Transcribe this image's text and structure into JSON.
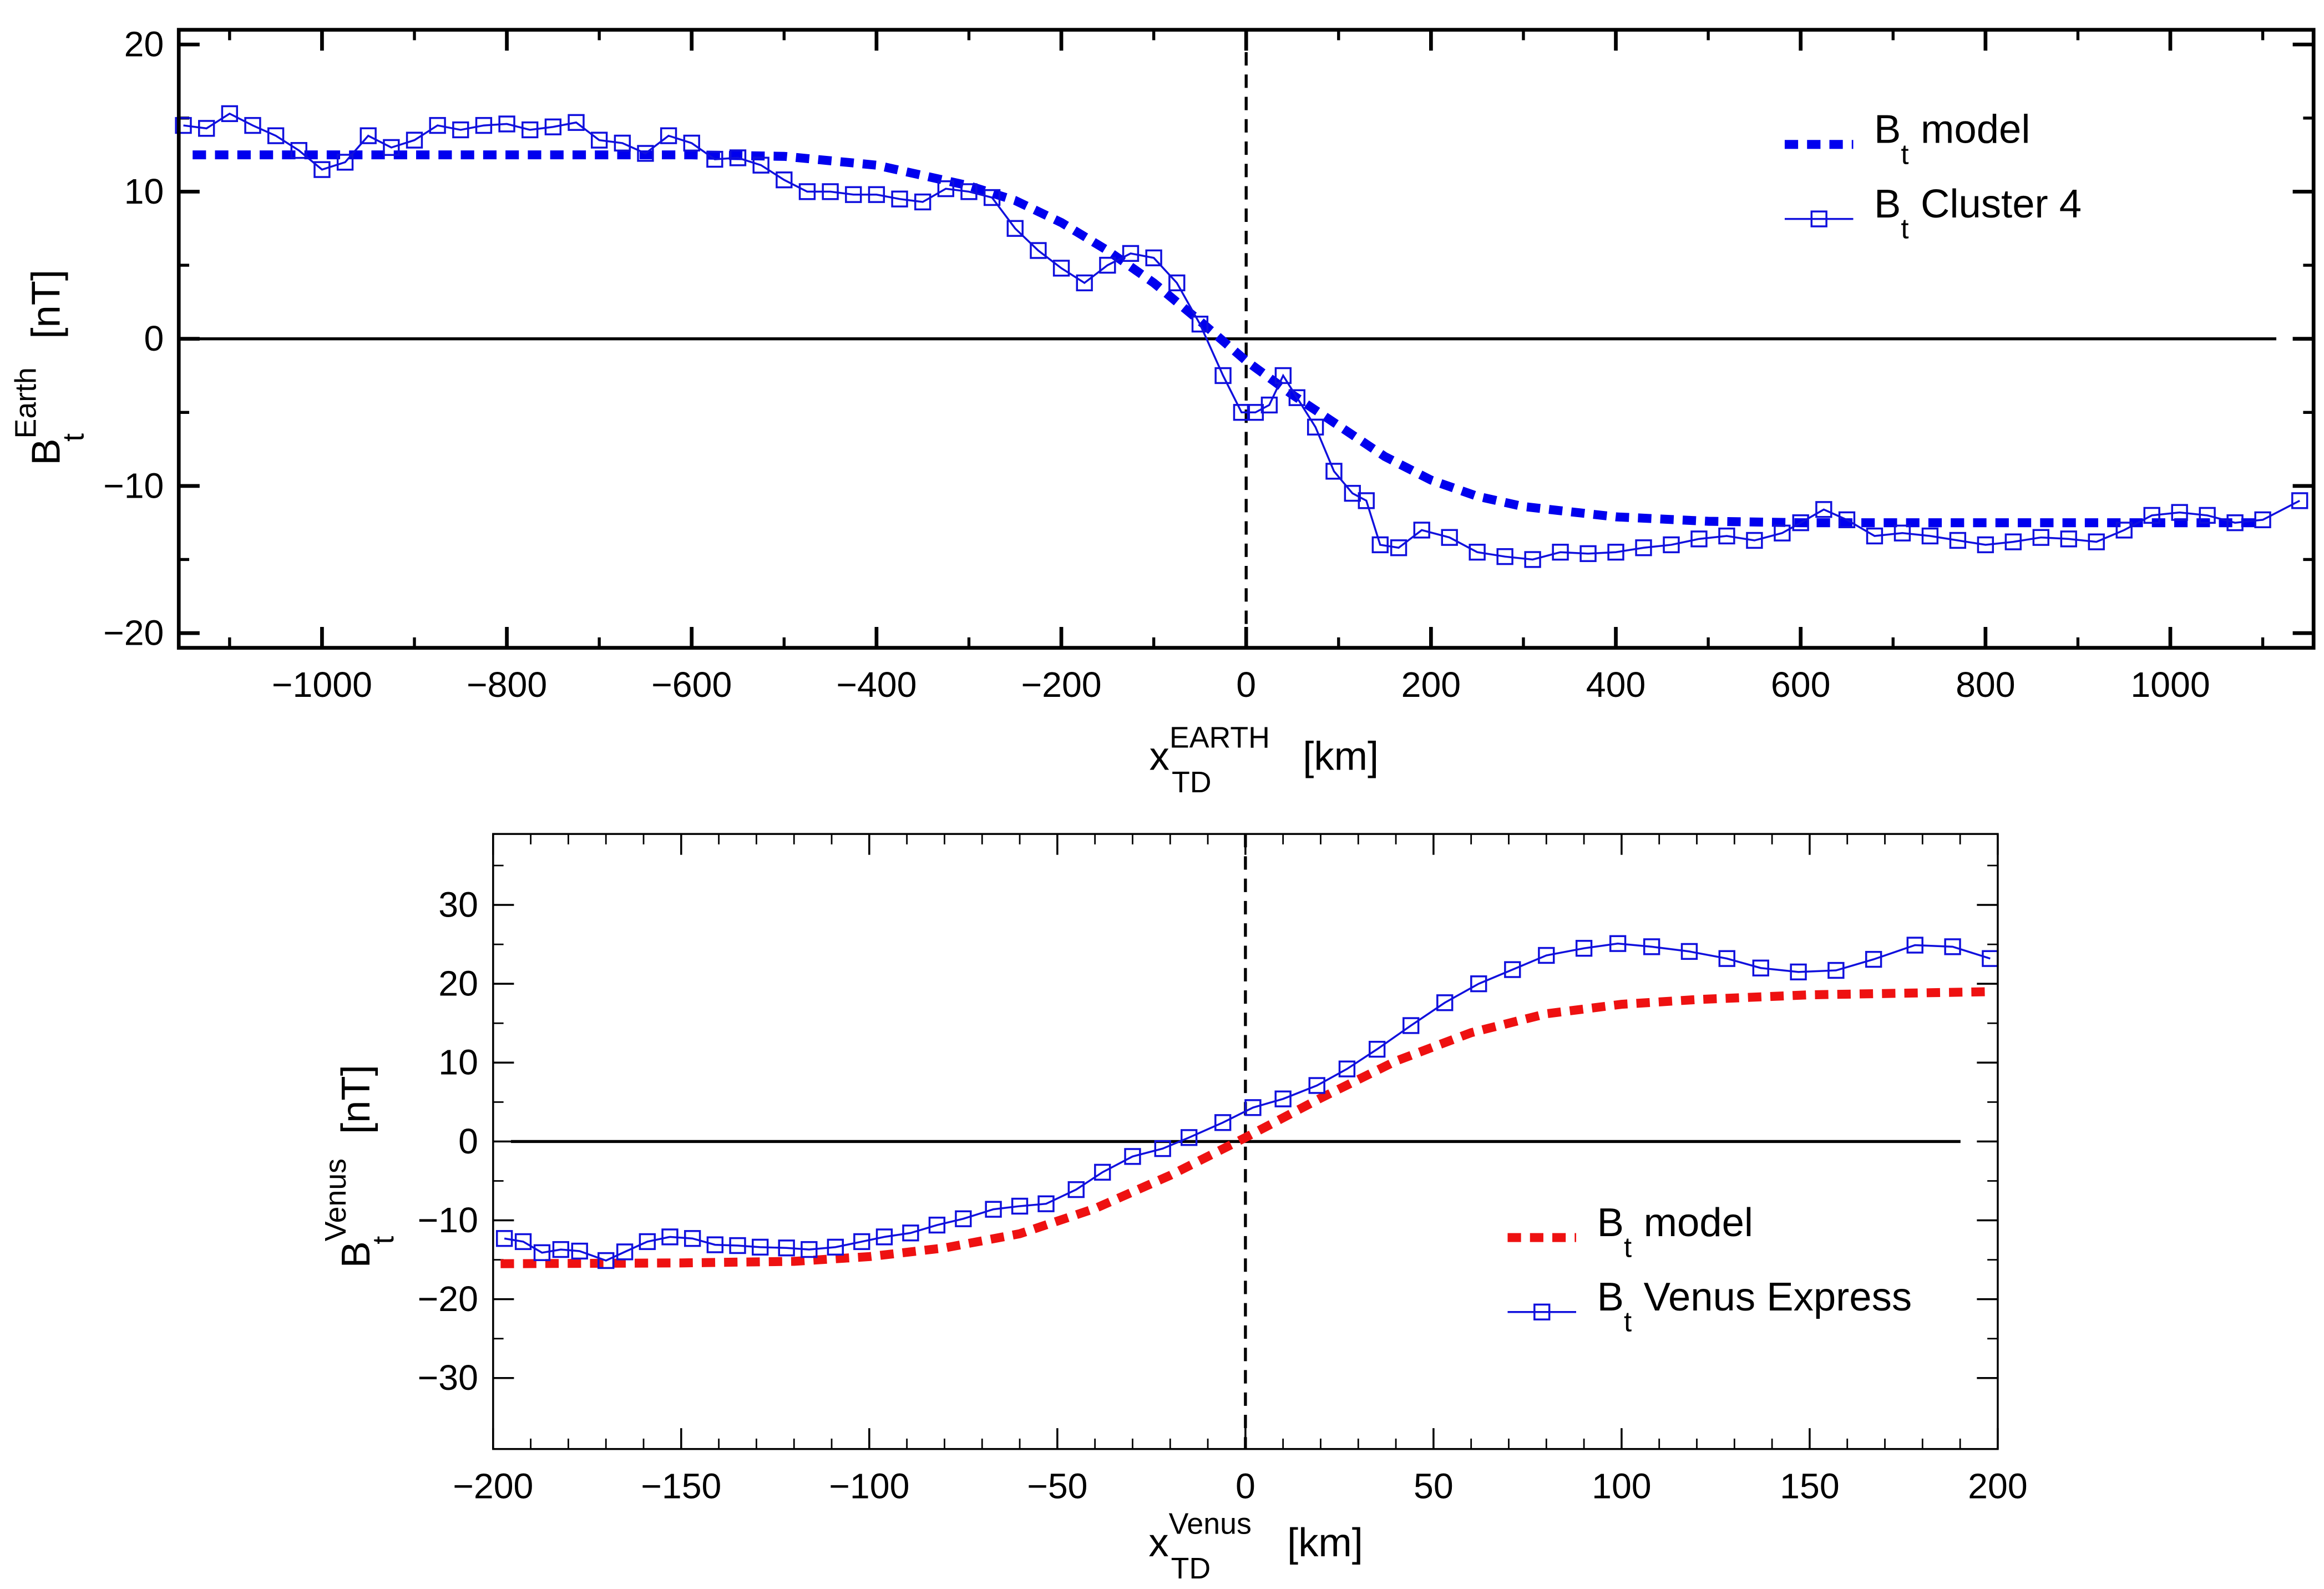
{
  "chart_data": [
    {
      "type": "line",
      "xlabel": {
        "base": "x",
        "sub": "TD",
        "sup": "EARTH",
        "unit": "[km]"
      },
      "ylabel": {
        "base": "B",
        "sub": "t",
        "sup": "Earth",
        "unit": "[nT]"
      },
      "xlim": [
        -1155,
        1155
      ],
      "ylim": [
        -21,
        21
      ],
      "xticks": [
        -1000,
        -800,
        -600,
        -400,
        -200,
        0,
        200,
        400,
        600,
        800,
        1000
      ],
      "xtick_labels": [
        "−1000",
        "−800",
        "−600",
        "−400",
        "−200",
        "0",
        "200",
        "400",
        "600",
        "800",
        "1000"
      ],
      "yticks": [
        20,
        10,
        0,
        -10,
        -20
      ],
      "ytick_labels": [
        "20",
        "10",
        "0",
        "−10",
        "−20"
      ],
      "grid": false,
      "legend_position": "top-right",
      "reference_lines": {
        "horizontal_y": 0,
        "vertical_dashed_x": 0
      },
      "series": [
        {
          "name": "model",
          "legend": {
            "base": "B",
            "sub": "t",
            "text": "model"
          },
          "style": "thick-dashed",
          "color": "#0000ee",
          "x": [
            -1140,
            -600,
            -500,
            -400,
            -300,
            -250,
            -200,
            -150,
            -100,
            -50,
            0,
            50,
            100,
            150,
            200,
            250,
            300,
            400,
            500,
            600,
            1100
          ],
          "y": [
            12.5,
            12.5,
            12.4,
            11.8,
            10.4,
            9.4,
            7.9,
            6.0,
            3.8,
            1.2,
            -1.5,
            -3.8,
            -5.9,
            -8.0,
            -9.6,
            -10.7,
            -11.4,
            -12.1,
            -12.4,
            -12.5,
            -12.5
          ]
        },
        {
          "name": "Cluster 4",
          "legend": {
            "base": "B",
            "sub": "t",
            "text": "Cluster 4"
          },
          "style": "line-square-markers",
          "color": "#1010dd",
          "x": [
            -1150,
            -1125,
            -1100,
            -1075,
            -1050,
            -1025,
            -1000,
            -975,
            -950,
            -925,
            -900,
            -875,
            -850,
            -825,
            -800,
            -775,
            -750,
            -725,
            -700,
            -675,
            -650,
            -625,
            -600,
            -575,
            -550,
            -525,
            -500,
            -475,
            -450,
            -425,
            -400,
            -375,
            -350,
            -325,
            -300,
            -275,
            -250,
            -225,
            -200,
            -175,
            -150,
            -125,
            -100,
            -75,
            -50,
            -25,
            -5,
            10,
            25,
            40,
            55,
            75,
            95,
            115,
            130,
            145,
            165,
            190,
            220,
            250,
            280,
            310,
            340,
            370,
            400,
            430,
            460,
            490,
            520,
            550,
            580,
            600,
            625,
            650,
            680,
            710,
            740,
            770,
            800,
            830,
            860,
            890,
            920,
            950,
            980,
            1010,
            1040,
            1070,
            1100,
            1140
          ],
          "y": [
            14.5,
            14.3,
            15.3,
            14.5,
            13.8,
            12.8,
            11.5,
            12.0,
            13.8,
            13.0,
            13.5,
            14.5,
            14.2,
            14.5,
            14.6,
            14.2,
            14.4,
            14.7,
            13.5,
            13.3,
            12.6,
            13.8,
            13.3,
            12.2,
            12.3,
            11.8,
            10.8,
            10.0,
            10.0,
            9.8,
            9.8,
            9.5,
            9.3,
            10.2,
            10.0,
            9.6,
            7.5,
            6.0,
            4.8,
            3.8,
            5.0,
            5.8,
            5.5,
            3.8,
            1.0,
            -2.5,
            -5.0,
            -5.0,
            -4.5,
            -2.5,
            -4.0,
            -6.0,
            -9.0,
            -10.5,
            -11.0,
            -14.0,
            -14.2,
            -13.0,
            -13.5,
            -14.5,
            -14.8,
            -15.0,
            -14.5,
            -14.6,
            -14.5,
            -14.2,
            -14.0,
            -13.6,
            -13.4,
            -13.7,
            -13.2,
            -12.5,
            -11.6,
            -12.3,
            -13.4,
            -13.2,
            -13.4,
            -13.7,
            -14.0,
            -13.8,
            -13.5,
            -13.6,
            -13.8,
            -13.0,
            -12.0,
            -11.8,
            -12.0,
            -12.5,
            -12.3,
            -11.0
          ]
        }
      ]
    },
    {
      "type": "line",
      "xlabel": {
        "base": "x",
        "sub": "TD",
        "sup": "Venus",
        "unit": "[km]"
      },
      "ylabel": {
        "base": "B",
        "sub": "t",
        "sup": "Venus",
        "unit": "[nT]"
      },
      "xlim": [
        -200,
        200
      ],
      "ylim": [
        -39,
        39
      ],
      "xticks": [
        -200,
        -150,
        -100,
        -50,
        0,
        50,
        100,
        150,
        200
      ],
      "xtick_labels": [
        "−200",
        "−150",
        "−100",
        "−50",
        "0",
        "50",
        "100",
        "150",
        "200"
      ],
      "yticks": [
        30,
        20,
        10,
        0,
        -10,
        -20,
        -30
      ],
      "ytick_labels": [
        "30",
        "20",
        "10",
        "0",
        "−10",
        "−20",
        "−30"
      ],
      "grid": false,
      "legend_position": "bottom-right",
      "reference_lines": {
        "horizontal_y": 0,
        "vertical_dashed_x": 0
      },
      "series": [
        {
          "name": "model",
          "legend": {
            "base": "B",
            "sub": "t",
            "text": "model"
          },
          "style": "thick-dashed",
          "color": "#ee1111",
          "x": [
            -198,
            -150,
            -120,
            -100,
            -80,
            -60,
            -40,
            -20,
            0,
            20,
            40,
            60,
            80,
            100,
            120,
            150,
            198
          ],
          "y": [
            -15.5,
            -15.4,
            -15.2,
            -14.6,
            -13.5,
            -11.7,
            -8.5,
            -4.3,
            0.5,
            5.5,
            10.2,
            13.8,
            16.2,
            17.4,
            18.0,
            18.6,
            19.0
          ]
        },
        {
          "name": "Venus Express",
          "legend": {
            "base": "B",
            "sub": "t",
            "text": "Venus Express"
          },
          "style": "line-square-markers",
          "color": "#1010dd",
          "x": [
            -197,
            -192,
            -187,
            -182,
            -177,
            -170,
            -165,
            -159,
            -153,
            -147,
            -141,
            -135,
            -129,
            -122,
            -116,
            -109,
            -102,
            -96,
            -89,
            -82,
            -75,
            -67,
            -60,
            -53,
            -45,
            -38,
            -30,
            -22,
            -15,
            -6,
            2,
            10,
            19,
            27,
            35,
            44,
            53,
            62,
            71,
            80,
            90,
            99,
            108,
            118,
            128,
            137,
            147,
            157,
            167,
            178,
            188,
            198
          ],
          "y": [
            -12.3,
            -12.7,
            -14.1,
            -13.7,
            -13.9,
            -15.1,
            -14.0,
            -12.7,
            -12.1,
            -12.3,
            -13.1,
            -13.2,
            -13.4,
            -13.5,
            -13.7,
            -13.4,
            -12.7,
            -12.1,
            -11.6,
            -10.6,
            -9.8,
            -8.6,
            -8.2,
            -7.9,
            -6.1,
            -3.9,
            -1.9,
            -0.9,
            0.5,
            2.4,
            4.3,
            5.4,
            7.1,
            9.2,
            11.7,
            14.7,
            17.6,
            20.0,
            21.8,
            23.6,
            24.5,
            25.1,
            24.7,
            24.1,
            23.2,
            22.0,
            21.5,
            21.7,
            23.1,
            24.9,
            24.7,
            23.2
          ]
        }
      ]
    }
  ]
}
